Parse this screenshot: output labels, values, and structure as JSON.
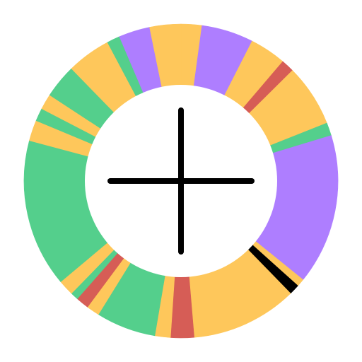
{
  "colors": {
    "background": "#ffffff",
    "yellow": "#FEC75B",
    "green": "#54CF8C",
    "purple": "#AE7EFF",
    "red": "#D65D56",
    "black": "#000000",
    "crosshair": "#000000"
  },
  "wheel": {
    "segments": [
      {
        "color": "yellow",
        "span_deg": 8
      },
      {
        "color": "purple",
        "span_deg": 20
      },
      {
        "color": "yellow",
        "span_deg": 14
      },
      {
        "color": "red",
        "span_deg": 5
      },
      {
        "color": "yellow",
        "span_deg": 24
      },
      {
        "color": "green",
        "span_deg": 5
      },
      {
        "color": "purple",
        "span_deg": 58
      },
      {
        "color": "yellow",
        "span_deg": 3
      },
      {
        "color": "black",
        "span_deg": 4
      },
      {
        "color": "yellow",
        "span_deg": 41
      },
      {
        "color": "red",
        "span_deg": 9
      },
      {
        "color": "yellow",
        "span_deg": 6
      },
      {
        "color": "green",
        "span_deg": 23
      },
      {
        "color": "yellow",
        "span_deg": 5
      },
      {
        "color": "red",
        "span_deg": 5
      },
      {
        "color": "green",
        "span_deg": 3
      },
      {
        "color": "yellow",
        "span_deg": 6
      },
      {
        "color": "green",
        "span_deg": 57
      },
      {
        "color": "yellow",
        "span_deg": 8
      },
      {
        "color": "green",
        "span_deg": 5
      },
      {
        "color": "yellow",
        "span_deg": 6
      },
      {
        "color": "green",
        "span_deg": 13
      },
      {
        "color": "yellow",
        "span_deg": 17
      },
      {
        "color": "green",
        "span_deg": 5
      },
      {
        "color": "purple",
        "span_deg": 12
      },
      {
        "color": "yellow",
        "span_deg": 12
      }
    ]
  },
  "crosshair": {
    "icon": "crosshair-icon"
  }
}
